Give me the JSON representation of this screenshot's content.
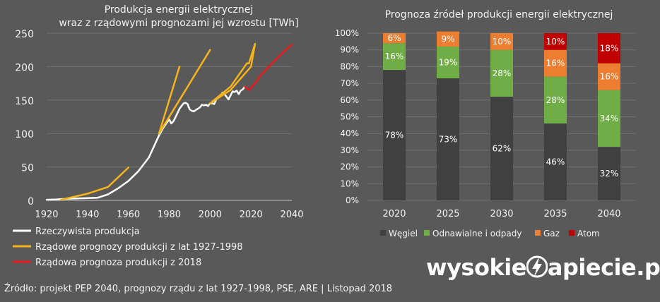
{
  "chart_data": [
    {
      "type": "line",
      "title": "Produkcja energii elektrycznej",
      "subtitle": "wraz z rządowymi prognozami jej wzrostu [TWh]",
      "xlim": [
        1920,
        2040
      ],
      "ylim": [
        0,
        250
      ],
      "x_ticks": [
        "1920",
        "1940",
        "1960",
        "1980",
        "2000",
        "2020",
        "2040"
      ],
      "y_ticks": [
        "0",
        "50",
        "100",
        "150",
        "200",
        "250"
      ],
      "legend_position": "bottom-left",
      "series": [
        {
          "name": "Rzeczywista produkcja",
          "color": "#ffffff",
          "points": [
            [
              1920,
              1
            ],
            [
              1925,
              1.5
            ],
            [
              1930,
              2.5
            ],
            [
              1935,
              3
            ],
            [
              1940,
              3.5
            ],
            [
              1945,
              4
            ],
            [
              1950,
              9
            ],
            [
              1955,
              18
            ],
            [
              1960,
              29
            ],
            [
              1965,
              44
            ],
            [
              1970,
              64
            ],
            [
              1975,
              97
            ],
            [
              1977,
              108
            ],
            [
              1979,
              117
            ],
            [
              1980,
              121
            ],
            [
              1981,
              115
            ],
            [
              1982,
              118
            ],
            [
              1983,
              124
            ],
            [
              1985,
              137
            ],
            [
              1987,
              145
            ],
            [
              1988,
              146
            ],
            [
              1989,
              144
            ],
            [
              1990,
              136
            ],
            [
              1991,
              134
            ],
            [
              1992,
              133
            ],
            [
              1993,
              135
            ],
            [
              1995,
              139
            ],
            [
              1996,
              143
            ],
            [
              1997,
              142
            ],
            [
              1998,
              143
            ],
            [
              1999,
              141
            ],
            [
              2000,
              145
            ],
            [
              2001,
              145
            ],
            [
              2002,
              144
            ],
            [
              2003,
              151
            ],
            [
              2004,
              154
            ],
            [
              2005,
              156
            ],
            [
              2006,
              161
            ],
            [
              2007,
              159
            ],
            [
              2008,
              155
            ],
            [
              2009,
              151
            ],
            [
              2010,
              157
            ],
            [
              2011,
              163
            ],
            [
              2012,
              162
            ],
            [
              2013,
              164
            ],
            [
              2014,
              159
            ],
            [
              2015,
              164
            ],
            [
              2016,
              166
            ],
            [
              2017,
              170
            ]
          ]
        },
        {
          "name": "Rządowe prognozy produkcji z lat 1927-1998",
          "color": "#f5b31c",
          "segments": [
            [
              [
                1927,
                1
              ],
              [
                1940,
                10
              ],
              [
                1950,
                20
              ],
              [
                1960,
                49
              ]
            ],
            [
              [
                1975,
                100
              ],
              [
                1985,
                200
              ]
            ],
            [
              [
                1975,
                100
              ],
              [
                1985,
                150
              ],
              [
                2000,
                225
              ]
            ],
            [
              [
                2000,
                145
              ],
              [
                2010,
                165
              ],
              [
                2020,
                200
              ],
              [
                2022,
                234
              ]
            ],
            [
              [
                2000,
                145
              ],
              [
                2010,
                170
              ],
              [
                2018,
                205
              ],
              [
                2019,
                205
              ],
              [
                2022,
                234
              ]
            ]
          ]
        },
        {
          "name": "Rządowa prognoza produkcji z 2018",
          "color": "#e8191b",
          "points": [
            [
              2017,
              170
            ],
            [
              2019,
              165
            ],
            [
              2022,
              175
            ],
            [
              2025,
              188
            ],
            [
              2030,
              204
            ],
            [
              2035,
              219
            ],
            [
              2040,
              233
            ]
          ]
        }
      ]
    },
    {
      "type": "bar",
      "stacked": true,
      "title": "Prognoza źródeł produkcji energii elektrycznej",
      "categories": [
        "2020",
        "2025",
        "2030",
        "2035",
        "2040"
      ],
      "ylim": [
        0,
        100
      ],
      "y_ticks": [
        "0%",
        "10%",
        "20%",
        "30%",
        "40%",
        "50%",
        "60%",
        "70%",
        "80%",
        "90%",
        "100%"
      ],
      "legend_position": "bottom",
      "series": [
        {
          "name": "Węgiel",
          "color": "#404040",
          "values": [
            78,
            73,
            62,
            46,
            32
          ],
          "labels": [
            "78%",
            "73%",
            "62%",
            "46%",
            "32%"
          ]
        },
        {
          "name": "Odnawialne i odpady",
          "color": "#70ad47",
          "values": [
            16,
            19,
            28,
            28,
            34
          ],
          "labels": [
            "16%",
            "19%",
            "28%",
            "28%",
            "34%"
          ]
        },
        {
          "name": "Gaz",
          "color": "#ed7d31",
          "values": [
            6,
            9,
            10,
            16,
            16
          ],
          "labels": [
            "6%",
            "9%",
            "10%",
            "16%",
            "16%"
          ]
        },
        {
          "name": "Atom",
          "color": "#c00000",
          "values": [
            0,
            0,
            0,
            10,
            18
          ],
          "labels": [
            "",
            "",
            "",
            "10%",
            "18%"
          ]
        }
      ]
    }
  ],
  "footer": {
    "source": "Źródło: projekt PEP 2040, prognozy rządu z lat 1927-1998, PSE, ARE   |  Listopad 2018",
    "brand_left": "wysokie",
    "brand_right": "apiecie.pl"
  }
}
